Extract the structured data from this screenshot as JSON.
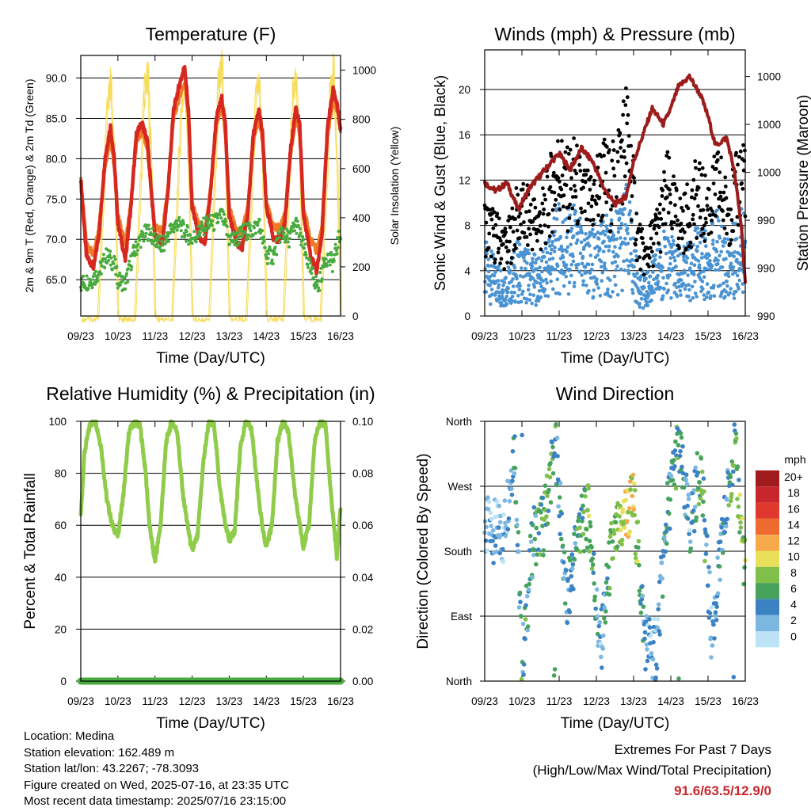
{
  "colors": {
    "temp2m": "#d62820",
    "temp9m": "#f07a26",
    "dewpoint": "#49aa3f",
    "solar": "#f7dc5a",
    "wind": "#4a93d2",
    "gust": "#000000",
    "pressure": "#9c1c1c",
    "rh": "#8fcc4a",
    "precip": "#49aa3f"
  },
  "chart_data": [
    {
      "id": "temperature",
      "type": "line",
      "title": "Temperature (F)",
      "xlabel": "Time (Day/UTC)",
      "ylabel_left": "2m & 9m T (Red, Orange) & 2m Td (Green)",
      "ylabel_right": "Solar Insolation (Yellow)",
      "x_ticks": [
        "09/23",
        "10/23",
        "11/23",
        "12/23",
        "13/23",
        "14/23",
        "15/23",
        "16/23"
      ],
      "ylim_left": [
        60.5,
        92.8
      ],
      "yticks_left": [
        "65.0",
        "70.0",
        "75.0",
        "80.0",
        "85.0",
        "90.0"
      ],
      "ylim_right": [
        0,
        1060
      ],
      "yticks_right": [
        "0",
        "200",
        "400",
        "600",
        "800",
        "1000"
      ],
      "series": [
        {
          "name": "2m T",
          "axis": "left",
          "color_key": "temp2m",
          "x": [
            0,
            0.15,
            0.35,
            0.5,
            0.65,
            0.8,
            0.9,
            1.0,
            1.2,
            1.35,
            1.5,
            1.65,
            1.8,
            1.9,
            2.0,
            2.2,
            2.35,
            2.5,
            2.65,
            2.8,
            2.9,
            3.0,
            3.2,
            3.35,
            3.5,
            3.65,
            3.8,
            3.9,
            4.0,
            4.2,
            4.35,
            4.5,
            4.65,
            4.8,
            4.9,
            5.0,
            5.2,
            5.35,
            5.5,
            5.65,
            5.8,
            5.9,
            6.0,
            6.2,
            6.35,
            6.5,
            6.65,
            6.8,
            6.9,
            7.0
          ],
          "values": [
            77.5,
            68,
            66.5,
            71,
            80,
            84,
            80,
            72,
            67.5,
            74,
            83,
            84.5,
            82,
            76,
            70.5,
            69.5,
            76,
            86,
            89,
            91.5,
            86,
            74,
            70,
            69.5,
            76,
            85,
            87.5,
            84,
            73,
            69.5,
            69,
            73,
            83,
            86,
            83,
            74,
            70,
            70,
            72,
            81,
            86.5,
            84,
            73,
            68,
            66,
            70.5,
            84,
            88.5,
            87,
            83.5
          ]
        },
        {
          "name": "9m T",
          "axis": "left",
          "color_key": "temp9m",
          "x": [
            0,
            0.15,
            0.35,
            0.5,
            0.65,
            0.8,
            0.9,
            1.0,
            1.2,
            1.35,
            1.5,
            1.65,
            1.8,
            1.9,
            2.0,
            2.2,
            2.35,
            2.5,
            2.65,
            2.8,
            2.9,
            3.0,
            3.2,
            3.35,
            3.5,
            3.65,
            3.8,
            3.9,
            4.0,
            4.2,
            4.35,
            4.5,
            4.65,
            4.8,
            4.9,
            5.0,
            5.2,
            5.35,
            5.5,
            5.65,
            5.8,
            5.9,
            6.0,
            6.2,
            6.35,
            6.5,
            6.65,
            6.8,
            6.9,
            7.0
          ],
          "values": [
            77.5,
            69.5,
            68,
            72,
            79,
            82.5,
            79,
            73,
            69.5,
            74.5,
            82,
            83.5,
            81,
            76,
            71.5,
            71,
            76.5,
            85,
            87.5,
            89.5,
            85,
            74.5,
            71.5,
            71,
            76.5,
            84,
            86.5,
            83,
            74,
            71,
            71,
            74,
            82,
            85,
            82,
            74.5,
            71.5,
            71.5,
            73,
            80.5,
            85,
            83,
            74,
            70,
            68.5,
            71.5,
            83,
            87,
            86,
            83.5
          ]
        },
        {
          "name": "2m Td",
          "axis": "left",
          "color_key": "dewpoint",
          "x": [
            0,
            0.3,
            0.5,
            0.7,
            0.9,
            1.0,
            1.2,
            1.4,
            1.6,
            1.8,
            2.0,
            2.2,
            2.4,
            2.6,
            2.8,
            3.0,
            3.2,
            3.4,
            3.6,
            3.8,
            4.0,
            4.2,
            4.4,
            4.6,
            4.8,
            5.0,
            5.2,
            5.4,
            5.6,
            5.8,
            6.0,
            6.2,
            6.4,
            6.6,
            6.8,
            7.0
          ],
          "values": [
            64.5,
            65,
            66,
            68,
            67,
            65,
            64.5,
            68,
            70,
            71,
            70,
            69,
            71,
            72,
            71,
            70,
            71,
            72,
            72,
            73,
            70,
            70,
            71,
            71,
            72,
            68,
            68,
            71,
            70,
            72,
            69,
            66,
            64,
            68,
            67,
            71
          ]
        },
        {
          "name": "Solar Insolation",
          "axis": "right",
          "color_key": "solar",
          "x": [
            0,
            0.45,
            0.6,
            0.7,
            0.8,
            0.9,
            1.0,
            1.45,
            1.6,
            1.7,
            1.8,
            1.9,
            2.0,
            2.45,
            2.6,
            2.7,
            2.8,
            2.9,
            3.0,
            3.45,
            3.6,
            3.7,
            3.8,
            3.9,
            4.0,
            4.45,
            4.6,
            4.7,
            4.8,
            4.9,
            5.0,
            5.45,
            5.6,
            5.7,
            5.8,
            5.9,
            6.0,
            6.45,
            6.6,
            6.7,
            6.8,
            6.9,
            7.0
          ],
          "values": [
            0,
            0,
            500,
            900,
            1000,
            650,
            0,
            0,
            550,
            950,
            990,
            600,
            0,
            0,
            520,
            880,
            1000,
            620,
            0,
            0,
            560,
            960,
            1040,
            640,
            0,
            0,
            500,
            900,
            980,
            600,
            0,
            0,
            540,
            920,
            1010,
            620,
            0,
            0,
            500,
            900,
            1020,
            640,
            0
          ]
        }
      ]
    },
    {
      "id": "winds",
      "type": "scatter",
      "title": "Winds (mph) & Pressure (mb)",
      "xlabel": "Time (Day/UTC)",
      "ylabel_left": "Sonic Wind & Gust (Blue, Black)",
      "ylabel_right": "Station Pressure (Maroon)",
      "x_ticks": [
        "09/23",
        "10/23",
        "11/23",
        "12/23",
        "13/23",
        "14/23",
        "15/23",
        "16/23"
      ],
      "ylim_left": [
        0,
        23.5
      ],
      "yticks_left": [
        "0",
        "4",
        "8",
        "12",
        "16",
        "20"
      ],
      "ylim_right": [
        0,
        1
      ],
      "yticks_right": [
        "990",
        "990",
        "990",
        "1000",
        "1000",
        "1000"
      ],
      "series": [
        {
          "name": "Sonic Wind",
          "axis": "left",
          "color_key": "wind",
          "x": [
            0,
            0.3,
            0.6,
            0.9,
            1.2,
            1.5,
            1.8,
            2.0,
            2.2,
            2.4,
            2.6,
            2.8,
            3.0,
            3.2,
            3.4,
            3.6,
            3.8,
            3.9,
            4.1,
            4.3,
            4.5,
            4.7,
            4.9,
            5.1,
            5.3,
            5.5,
            5.7,
            5.9,
            6.1,
            6.3,
            6.5,
            6.7,
            6.9,
            7.0
          ],
          "values": [
            4,
            3,
            2.5,
            4,
            3.5,
            3,
            5,
            6,
            5.5,
            6,
            5,
            4.5,
            5,
            5.5,
            5,
            6,
            7,
            6,
            3,
            2,
            3,
            4,
            5,
            4,
            3.5,
            4,
            5,
            4.5,
            5,
            6,
            4,
            5,
            6,
            7
          ]
        },
        {
          "name": "Gust",
          "axis": "left",
          "color_key": "gust",
          "x": [
            0,
            0.3,
            0.6,
            0.9,
            1.2,
            1.5,
            1.8,
            2.0,
            2.2,
            2.4,
            2.6,
            2.8,
            3.0,
            3.2,
            3.4,
            3.6,
            3.8,
            3.9,
            4.1,
            4.3,
            4.5,
            4.7,
            4.9,
            5.1,
            5.3,
            5.5,
            5.7,
            5.9,
            6.1,
            6.3,
            6.5,
            6.7,
            6.9,
            7.0
          ],
          "values": [
            8,
            7,
            6,
            9,
            8.5,
            8,
            11,
            13,
            11,
            12,
            10.5,
            9.5,
            11,
            12,
            11,
            13.5,
            16,
            14,
            7,
            5,
            6.5,
            8,
            11,
            9,
            8,
            9,
            10.5,
            9.5,
            10,
            11.5,
            9,
            10,
            12.5,
            13
          ]
        },
        {
          "name": "Station Pressure",
          "axis": "right",
          "color_key": "pressure",
          "x": [
            0,
            0.3,
            0.6,
            0.9,
            1.2,
            1.5,
            1.8,
            2.0,
            2.3,
            2.6,
            2.9,
            3.2,
            3.5,
            3.8,
            4.0,
            4.2,
            4.5,
            4.8,
            5.0,
            5.2,
            5.5,
            5.8,
            6.0,
            6.2,
            6.5,
            6.7,
            6.9,
            7.0
          ],
          "values": [
            0.5,
            0.47,
            0.5,
            0.4,
            0.48,
            0.53,
            0.58,
            0.61,
            0.55,
            0.63,
            0.58,
            0.48,
            0.42,
            0.45,
            0.58,
            0.66,
            0.78,
            0.72,
            0.78,
            0.86,
            0.9,
            0.83,
            0.75,
            0.64,
            0.67,
            0.55,
            0.33,
            0.12
          ]
        }
      ]
    },
    {
      "id": "humidity",
      "type": "line",
      "title": "Relative Humidity (%) & Precipitation (in)",
      "xlabel": "Time (Day/UTC)",
      "ylabel_left": "Percent & Total Rainfall",
      "x_ticks": [
        "09/23",
        "10/23",
        "11/23",
        "12/23",
        "13/23",
        "14/23",
        "15/23",
        "16/23"
      ],
      "ylim_left": [
        0,
        100
      ],
      "yticks_left": [
        "0",
        "20",
        "40",
        "60",
        "80",
        "100"
      ],
      "ylim_right": [
        0,
        0.1
      ],
      "yticks_right": [
        "0.00",
        "0.02",
        "0.04",
        "0.06",
        "0.08",
        "0.10"
      ],
      "series": [
        {
          "name": "Relative Humidity",
          "axis": "left",
          "color_key": "rh",
          "x": [
            0,
            0.1,
            0.25,
            0.4,
            0.55,
            0.7,
            0.85,
            1.0,
            1.15,
            1.3,
            1.45,
            1.6,
            1.75,
            1.85,
            2.0,
            2.15,
            2.3,
            2.45,
            2.6,
            2.75,
            2.9,
            3.0,
            3.15,
            3.3,
            3.45,
            3.6,
            3.75,
            3.9,
            4.0,
            4.15,
            4.3,
            4.45,
            4.6,
            4.75,
            4.9,
            5.0,
            5.15,
            5.3,
            5.45,
            5.6,
            5.75,
            5.9,
            6.0,
            6.15,
            6.3,
            6.45,
            6.6,
            6.75,
            6.9,
            7.0
          ],
          "values": [
            64,
            88,
            99,
            100,
            90,
            70,
            60,
            56,
            72,
            96,
            100,
            98,
            80,
            60,
            46,
            60,
            92,
            100,
            96,
            72,
            58,
            50,
            56,
            84,
            100,
            98,
            74,
            60,
            54,
            58,
            90,
            100,
            97,
            76,
            58,
            52,
            60,
            92,
            100,
            96,
            74,
            60,
            52,
            60,
            92,
            100,
            98,
            70,
            48,
            66
          ]
        },
        {
          "name": "Total Rainfall",
          "axis": "right",
          "color_key": "precip",
          "x": [
            0,
            7
          ],
          "values": [
            0,
            0
          ]
        }
      ]
    },
    {
      "id": "wind-direction",
      "type": "scatter",
      "title": "Wind Direction",
      "xlabel": "Time (Day/UTC)",
      "ylabel_left": "Direction (Colored By Speed)",
      "x_ticks": [
        "09/23",
        "10/23",
        "11/23",
        "12/23",
        "13/23",
        "14/23",
        "15/23",
        "16/23"
      ],
      "ylim_left": [
        0,
        360
      ],
      "yticks_left": [
        "North",
        "East",
        "South",
        "West",
        "North"
      ],
      "colorbar": {
        "title": "mph",
        "labels": [
          "20+",
          "18",
          "16",
          "14",
          "12",
          "10",
          "8",
          "6",
          "4",
          "2",
          "0"
        ],
        "colors": [
          "#a01b1b",
          "#c8262b",
          "#e0382c",
          "#ef6a2f",
          "#f6a94b",
          "#e9e05a",
          "#7fbf4a",
          "#46a35d",
          "#3a82c4",
          "#7cb7e2",
          "#bde3f6"
        ]
      },
      "series": [
        {
          "name": "Direction",
          "x": [
            0.2,
            0.5,
            0.8,
            1.0,
            1.3,
            1.6,
            1.9,
            2.2,
            2.5,
            2.8,
            3.1,
            3.4,
            3.7,
            4.0,
            4.3,
            4.6,
            4.9,
            5.2,
            5.5,
            5.8,
            6.1,
            6.4,
            6.7,
            7.0
          ],
          "values": [
            210,
            200,
            330,
            20,
            200,
            220,
            340,
            100,
            210,
            230,
            40,
            180,
            220,
            250,
            60,
            40,
            230,
            330,
            210,
            300,
            60,
            200,
            330,
            150
          ],
          "speeds": [
            3,
            4,
            5,
            6,
            5,
            8,
            6,
            4,
            6,
            9,
            3,
            7,
            10,
            11,
            4,
            3,
            5,
            6,
            4,
            8,
            3,
            5,
            7,
            9
          ]
        }
      ]
    }
  ],
  "footer": {
    "location": "Location: Medina",
    "elevation": "Station elevation: 162.489 m",
    "latlon": "Station lat/lon: 43.2267; -78.3093",
    "created": "Figure created on Wed, 2025-07-16, at 23:35 UTC",
    "recent": "Most recent data timestamp: 2025/07/16 23:15:00",
    "extremes_title": "Extremes For Past 7 Days",
    "extremes_sub": "(High/Low/Max Wind/Total Precipitation)",
    "extremes_values": "91.6/63.5/12.9/0"
  }
}
